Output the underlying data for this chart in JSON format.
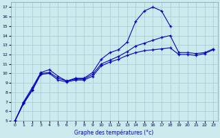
{
  "xlabel": "Graphe des températures (°c)",
  "bg_color": "#cceaed",
  "grid_color": "#aad4d8",
  "line_color": "#0000bb",
  "xlim": [
    -0.5,
    23.5
  ],
  "ylim": [
    5,
    17.5
  ],
  "xticks": [
    0,
    1,
    2,
    3,
    4,
    5,
    6,
    7,
    8,
    9,
    10,
    11,
    12,
    13,
    14,
    15,
    16,
    17,
    18,
    19,
    20,
    21,
    22,
    23
  ],
  "yticks": [
    5,
    6,
    7,
    8,
    9,
    10,
    11,
    12,
    13,
    14,
    15,
    16,
    17
  ],
  "line1": {
    "x": [
      0,
      1,
      2,
      3,
      4,
      5,
      6,
      7,
      8,
      9,
      10,
      11,
      12,
      13,
      14,
      15,
      16,
      17,
      18
    ],
    "y": [
      5.0,
      7.0,
      8.5,
      10.1,
      10.4,
      9.7,
      9.2,
      9.5,
      9.5,
      10.1,
      11.5,
      12.2,
      12.5,
      13.3,
      15.5,
      16.6,
      17.0,
      16.6,
      15.0
    ]
  },
  "line2": {
    "x": [
      0,
      1,
      2,
      3,
      4,
      5,
      6,
      7,
      8,
      9,
      10,
      11,
      12,
      13,
      14,
      15,
      16,
      17,
      18,
      19,
      20,
      21,
      22,
      23
    ],
    "y": [
      5.0,
      6.9,
      8.3,
      10.0,
      10.1,
      9.5,
      9.2,
      9.4,
      9.4,
      9.9,
      11.0,
      11.4,
      11.8,
      12.3,
      12.9,
      13.2,
      13.5,
      13.8,
      14.0,
      12.2,
      12.2,
      12.1,
      12.2,
      12.6
    ]
  },
  "line3": {
    "x": [
      0,
      1,
      2,
      3,
      4,
      5,
      6,
      7,
      8,
      9,
      10,
      11,
      12,
      13,
      14,
      15,
      16,
      17,
      18,
      19,
      20,
      21,
      22,
      23
    ],
    "y": [
      5.0,
      6.8,
      8.2,
      9.9,
      10.0,
      9.3,
      9.1,
      9.3,
      9.3,
      9.7,
      10.8,
      11.2,
      11.5,
      11.9,
      12.2,
      12.4,
      12.5,
      12.6,
      12.7,
      12.0,
      12.0,
      11.9,
      12.1,
      12.5
    ]
  }
}
